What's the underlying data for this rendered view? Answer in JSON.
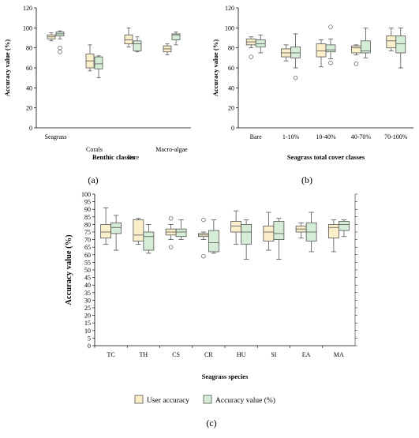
{
  "colors": {
    "user": "#fbeecb",
    "acc": "#d5ecd6",
    "stroke": "#555555"
  },
  "legend": {
    "user": "User accuracy",
    "acc": "Accuracy  value (%)"
  },
  "chart_data": [
    {
      "id": "a",
      "type": "box",
      "panel_label": "(a)",
      "xlabel": "Benthic classes",
      "ylabel": "Accuracy value (%)",
      "ylim": [
        0,
        120
      ],
      "yticks": [
        0,
        20,
        40,
        60,
        80,
        100,
        120
      ],
      "categories": [
        "Seagrass",
        "Corals",
        "Bare",
        "Macro-algae"
      ],
      "series": [
        {
          "role": "user",
          "boxes": [
            {
              "min": 87,
              "q1": 89,
              "median": 91,
              "q3": 93,
              "max": 95,
              "outliers": []
            },
            {
              "min": 57,
              "q1": 60,
              "median": 67,
              "q3": 74,
              "max": 83,
              "outliers": []
            },
            {
              "min": 81,
              "q1": 84,
              "median": 88,
              "q3": 93,
              "max": 100,
              "outliers": []
            },
            {
              "min": 73,
              "q1": 76,
              "median": 79,
              "q3": 82,
              "max": 84,
              "outliers": []
            }
          ]
        },
        {
          "role": "acc",
          "boxes": [
            {
              "min": 89,
              "q1": 92,
              "median": 94,
              "q3": 96,
              "max": 97,
              "outliers": [
                76,
                80
              ]
            },
            {
              "min": 50,
              "q1": 59,
              "median": 64,
              "q3": 71,
              "max": 72,
              "outliers": []
            },
            {
              "min": 76,
              "q1": 77,
              "median": 84,
              "q3": 87,
              "max": 91,
              "outliers": []
            },
            {
              "min": 83,
              "q1": 88,
              "median": 93,
              "q3": 94,
              "max": 96,
              "outliers": []
            }
          ]
        }
      ]
    },
    {
      "id": "b",
      "type": "box",
      "panel_label": "(b)",
      "xlabel": "Seagrass total cover classes",
      "ylabel": "Accuracy value (%)",
      "ylim": [
        0,
        120
      ],
      "yticks": [
        0,
        20,
        40,
        60,
        80,
        100,
        120
      ],
      "categories": [
        "Bare",
        "1-10%",
        "10-40%",
        "40-70%",
        "70-100%"
      ],
      "series": [
        {
          "role": "user",
          "boxes": [
            {
              "min": 80,
              "q1": 83,
              "median": 86,
              "q3": 89,
              "max": 91,
              "outliers": [
                71
              ]
            },
            {
              "min": 67,
              "q1": 71,
              "median": 75,
              "q3": 79,
              "max": 83,
              "outliers": []
            },
            {
              "min": 61,
              "q1": 71,
              "median": 77,
              "q3": 84,
              "max": 88,
              "outliers": []
            },
            {
              "min": 73,
              "q1": 75,
              "median": 80,
              "q3": 82,
              "max": 83,
              "outliers": [
                64
              ]
            },
            {
              "min": 77,
              "q1": 80,
              "median": 87,
              "q3": 92,
              "max": 100,
              "outliers": []
            }
          ]
        },
        {
          "role": "acc",
          "boxes": [
            {
              "min": 75,
              "q1": 81,
              "median": 84,
              "q3": 88,
              "max": 93,
              "outliers": []
            },
            {
              "min": 60,
              "q1": 70,
              "median": 75,
              "q3": 81,
              "max": 94,
              "outliers": [
                50
              ]
            },
            {
              "min": 69,
              "q1": 76,
              "median": 78,
              "q3": 83,
              "max": 89,
              "outliers": [
                65,
                101
              ]
            },
            {
              "min": 70,
              "q1": 75,
              "median": 77,
              "q3": 87,
              "max": 100,
              "outliers": []
            },
            {
              "min": 60,
              "q1": 75,
              "median": 84,
              "q3": 92,
              "max": 100,
              "outliers": []
            }
          ]
        }
      ]
    },
    {
      "id": "c",
      "type": "box",
      "panel_label": "(c)",
      "xlabel": "Seagrass species",
      "ylabel": "Accuracy  value (%)",
      "ylim": [
        0,
        100
      ],
      "yticks": [
        0,
        5,
        10,
        15,
        20,
        25,
        30,
        35,
        40,
        45,
        50,
        55,
        60,
        65,
        70,
        75,
        80,
        85,
        90,
        95,
        100
      ],
      "categories": [
        "TC",
        "TH",
        "CS",
        "CR",
        "HU",
        "SI",
        "EA",
        "MA"
      ],
      "series": [
        {
          "role": "user",
          "boxes": [
            {
              "min": 67,
              "q1": 71,
              "median": 75,
              "q3": 80,
              "max": 91,
              "outliers": []
            },
            {
              "min": 67,
              "q1": 69,
              "median": 73,
              "q3": 83,
              "max": 84,
              "outliers": []
            },
            {
              "min": 70,
              "q1": 73,
              "median": 75,
              "q3": 77,
              "max": 80,
              "outliers": [
                65,
                84
              ]
            },
            {
              "min": 70,
              "q1": 72,
              "median": 73,
              "q3": 74,
              "max": 75,
              "outliers": [
                59,
                83
              ]
            },
            {
              "min": 67,
              "q1": 75,
              "median": 79,
              "q3": 82,
              "max": 89,
              "outliers": []
            },
            {
              "min": 63,
              "q1": 69,
              "median": 75,
              "q3": 79,
              "max": 88,
              "outliers": []
            },
            {
              "min": 71,
              "q1": 75,
              "median": 77,
              "q3": 79,
              "max": 81,
              "outliers": []
            },
            {
              "min": 62,
              "q1": 71,
              "median": 78,
              "q3": 80,
              "max": 83,
              "outliers": []
            }
          ]
        },
        {
          "role": "acc",
          "boxes": [
            {
              "min": 63,
              "q1": 74,
              "median": 78,
              "q3": 81,
              "max": 86,
              "outliers": []
            },
            {
              "min": 61,
              "q1": 63,
              "median": 72,
              "q3": 75,
              "max": 80,
              "outliers": []
            },
            {
              "min": 70,
              "q1": 72,
              "median": 75,
              "q3": 77,
              "max": 83,
              "outliers": []
            },
            {
              "min": 61,
              "q1": 62,
              "median": 68,
              "q3": 76,
              "max": 83,
              "outliers": []
            },
            {
              "min": 57,
              "q1": 67,
              "median": 75,
              "q3": 80,
              "max": 83,
              "outliers": []
            },
            {
              "min": 57,
              "q1": 70,
              "median": 74,
              "q3": 82,
              "max": 84,
              "outliers": []
            },
            {
              "min": 62,
              "q1": 69,
              "median": 75,
              "q3": 81,
              "max": 88,
              "outliers": []
            },
            {
              "min": 72,
              "q1": 76,
              "median": 80,
              "q3": 82,
              "max": 83,
              "outliers": []
            }
          ]
        }
      ]
    }
  ]
}
